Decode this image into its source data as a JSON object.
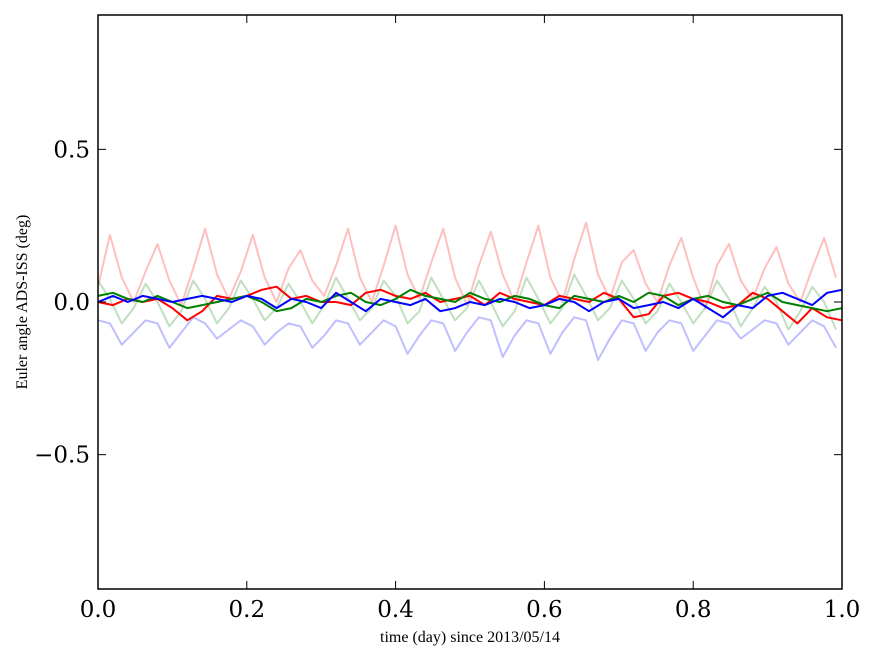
{
  "chart_data": {
    "type": "line",
    "title": "",
    "xlabel": "time (day) since 2013/05/14",
    "ylabel": "Euler angle ADS-ISS (deg)",
    "xlim": [
      0.0,
      1.0
    ],
    "ylim": [
      -0.94,
      0.94
    ],
    "xticks": [
      0.0,
      0.2,
      0.4,
      0.6,
      0.8,
      1.0
    ],
    "xtick_labels": [
      "0.0",
      "0.2",
      "0.4",
      "0.6",
      "0.8",
      "1.0"
    ],
    "yticks": [
      0.5,
      0.0,
      -0.5
    ],
    "ytick_labels": [
      "0.5",
      "0.0",
      "−0.5"
    ],
    "grid": false,
    "series": [
      {
        "name": "red-faint",
        "color": "#ff0000",
        "alpha": 0.25,
        "x_start": 0,
        "x_step": 0.016,
        "values": [
          0.05,
          0.22,
          0.08,
          0.0,
          0.1,
          0.19,
          0.07,
          -0.01,
          0.11,
          0.24,
          0.09,
          0.01,
          0.1,
          0.22,
          0.08,
          0.0,
          0.11,
          0.17,
          0.07,
          0.02,
          0.12,
          0.24,
          0.08,
          0.0,
          0.12,
          0.25,
          0.09,
          0.01,
          0.13,
          0.24,
          0.08,
          -0.01,
          0.12,
          0.23,
          0.09,
          0.0,
          0.13,
          0.25,
          0.08,
          0.0,
          0.14,
          0.26,
          0.09,
          0.01,
          0.13,
          0.17,
          0.06,
          0.0,
          0.12,
          0.21,
          0.08,
          -0.02,
          0.12,
          0.19,
          0.07,
          0.01,
          0.11,
          0.18,
          0.06,
          0.0,
          0.11,
          0.21,
          0.08
        ]
      },
      {
        "name": "green-faint",
        "color": "#008000",
        "alpha": 0.25,
        "x_start": 0,
        "x_step": 0.016,
        "values": [
          0.07,
          0.01,
          -0.07,
          -0.02,
          0.06,
          0.0,
          -0.08,
          -0.03,
          0.07,
          0.01,
          -0.07,
          -0.02,
          0.07,
          0.01,
          -0.06,
          -0.02,
          0.06,
          0.0,
          -0.07,
          -0.01,
          0.08,
          0.01,
          -0.06,
          -0.02,
          0.07,
          0.02,
          -0.07,
          -0.03,
          0.08,
          0.01,
          -0.06,
          -0.02,
          0.07,
          0.0,
          -0.08,
          -0.03,
          0.08,
          0.01,
          -0.07,
          -0.02,
          0.09,
          0.02,
          -0.06,
          -0.02,
          0.07,
          0.01,
          -0.07,
          -0.03,
          0.06,
          0.0,
          -0.07,
          -0.02,
          0.07,
          0.01,
          -0.08,
          -0.02,
          0.05,
          0.0,
          -0.09,
          -0.03,
          0.05,
          0.0,
          -0.09
        ]
      },
      {
        "name": "blue-faint",
        "color": "#0000ff",
        "alpha": 0.25,
        "x_start": 0,
        "x_step": 0.016,
        "values": [
          -0.06,
          -0.07,
          -0.14,
          -0.1,
          -0.06,
          -0.07,
          -0.15,
          -0.1,
          -0.05,
          -0.07,
          -0.12,
          -0.09,
          -0.06,
          -0.08,
          -0.14,
          -0.1,
          -0.07,
          -0.08,
          -0.15,
          -0.11,
          -0.06,
          -0.07,
          -0.14,
          -0.1,
          -0.06,
          -0.08,
          -0.17,
          -0.11,
          -0.06,
          -0.07,
          -0.16,
          -0.1,
          -0.05,
          -0.06,
          -0.18,
          -0.11,
          -0.06,
          -0.07,
          -0.17,
          -0.1,
          -0.05,
          -0.06,
          -0.19,
          -0.12,
          -0.06,
          -0.07,
          -0.16,
          -0.1,
          -0.06,
          -0.07,
          -0.16,
          -0.11,
          -0.06,
          -0.07,
          -0.12,
          -0.09,
          -0.06,
          -0.07,
          -0.14,
          -0.1,
          -0.06,
          -0.08,
          -0.15
        ]
      },
      {
        "name": "red",
        "color": "#ff0000",
        "alpha": 1,
        "x_start": 0,
        "x_step": 0.02,
        "values": [
          0.0,
          -0.01,
          0.01,
          0.0,
          0.01,
          -0.02,
          -0.06,
          -0.03,
          0.02,
          0.01,
          0.02,
          0.04,
          0.05,
          0.01,
          0.02,
          0.0,
          0.0,
          -0.01,
          0.03,
          0.04,
          0.02,
          0.01,
          0.03,
          0.0,
          0.01,
          0.02,
          -0.01,
          0.03,
          0.01,
          0.0,
          -0.01,
          0.02,
          0.01,
          0.0,
          0.03,
          0.01,
          -0.05,
          -0.04,
          0.02,
          0.03,
          0.01,
          0.0,
          -0.02,
          -0.01,
          0.03,
          0.01,
          -0.03,
          -0.07,
          -0.02,
          -0.05,
          -0.06
        ]
      },
      {
        "name": "green",
        "color": "#008000",
        "alpha": 1,
        "x_start": 0,
        "x_step": 0.02,
        "values": [
          0.02,
          0.03,
          0.01,
          0.0,
          0.02,
          0.0,
          -0.02,
          -0.01,
          0.0,
          0.01,
          0.02,
          0.0,
          -0.03,
          -0.02,
          0.01,
          0.0,
          0.02,
          0.03,
          0.0,
          -0.01,
          0.01,
          0.04,
          0.02,
          0.01,
          0.0,
          0.03,
          0.01,
          0.0,
          0.02,
          0.01,
          -0.01,
          -0.02,
          0.02,
          0.01,
          0.0,
          0.02,
          0.0,
          0.03,
          0.02,
          -0.01,
          0.01,
          0.02,
          0.0,
          -0.01,
          0.01,
          0.03,
          0.0,
          -0.01,
          -0.02,
          -0.03,
          -0.02
        ]
      },
      {
        "name": "blue",
        "color": "#0000ff",
        "alpha": 1,
        "x_start": 0,
        "x_step": 0.02,
        "values": [
          0.0,
          0.02,
          0.0,
          0.02,
          0.01,
          0.0,
          0.01,
          0.02,
          0.01,
          0.0,
          0.02,
          0.01,
          -0.02,
          0.01,
          0.0,
          -0.02,
          0.03,
          0.0,
          -0.03,
          0.01,
          0.0,
          -0.01,
          0.01,
          -0.03,
          -0.02,
          0.0,
          -0.01,
          0.01,
          0.0,
          -0.02,
          -0.01,
          0.01,
          0.0,
          -0.03,
          0.0,
          0.01,
          -0.02,
          -0.01,
          0.0,
          -0.02,
          0.01,
          -0.02,
          -0.05,
          -0.01,
          -0.02,
          0.02,
          0.03,
          0.01,
          -0.01,
          0.03,
          0.04
        ]
      }
    ]
  }
}
